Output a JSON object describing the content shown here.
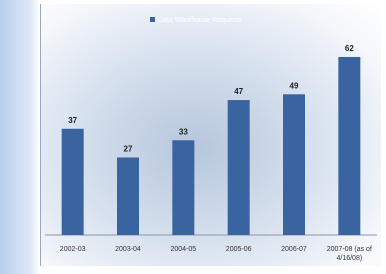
{
  "chart_data": {
    "type": "bar",
    "categories": [
      "2002-03",
      "2003-04",
      "2004-05",
      "2005-06",
      "2006-07",
      "2007-08 (as of 4/16/08)"
    ],
    "series": [
      {
        "name": "Data Warehouse Requests",
        "color": "#3a64a0",
        "values": [
          37,
          27,
          33,
          47,
          49,
          62
        ]
      }
    ],
    "ylim": [
      0,
      70
    ],
    "legend": "top",
    "data_labels": true
  }
}
